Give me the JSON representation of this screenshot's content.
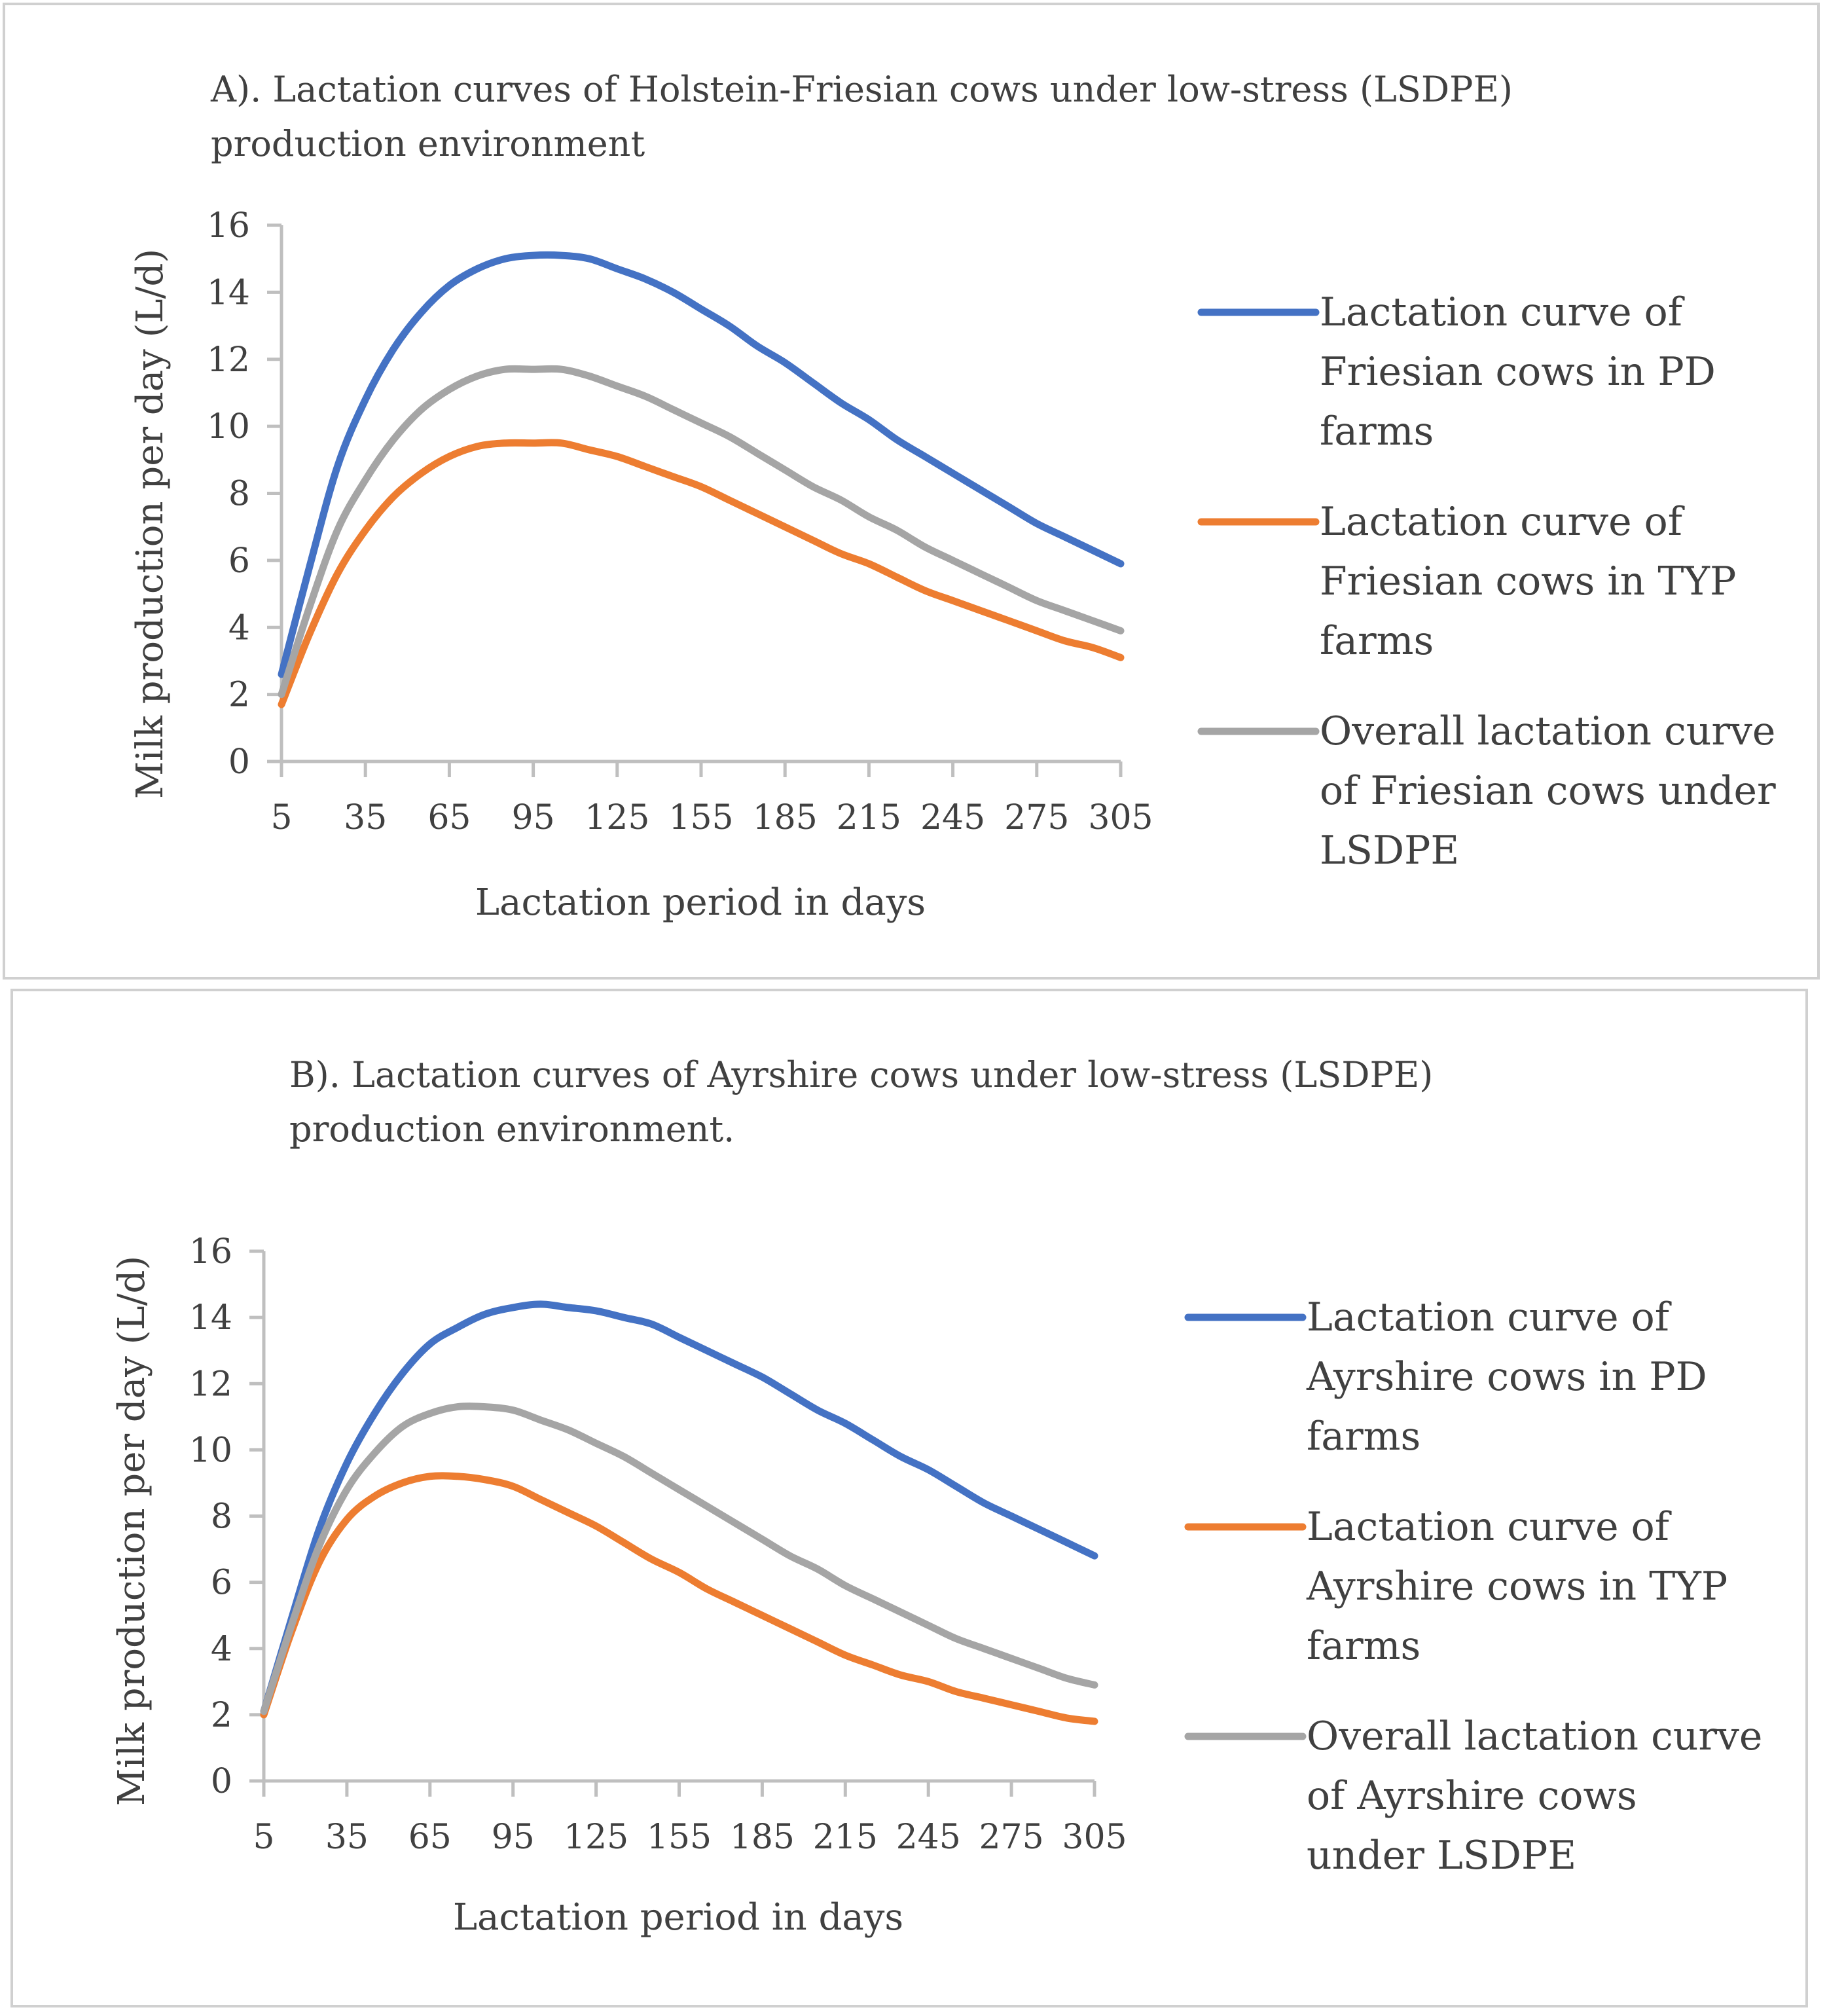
{
  "chart_data": [
    {
      "type": "line",
      "title": [
        "A). Lactation curves of Holstein-Friesian cows under low-stress (LSDPE)",
        "production environment"
      ],
      "xlabel": "Lactation period in days",
      "ylabel": "Milk production per day (L/d)",
      "xlim": [
        5,
        305
      ],
      "ylim": [
        0,
        16
      ],
      "x_ticks": [
        5,
        35,
        65,
        95,
        125,
        155,
        185,
        215,
        245,
        275,
        305
      ],
      "y_ticks": [
        0,
        2,
        4,
        6,
        8,
        10,
        12,
        14,
        16
      ],
      "grid": false,
      "legend_position": "right",
      "x": [
        5,
        15,
        25,
        35,
        45,
        55,
        65,
        75,
        85,
        95,
        105,
        115,
        125,
        135,
        145,
        155,
        165,
        175,
        185,
        195,
        205,
        215,
        225,
        235,
        245,
        255,
        265,
        275,
        285,
        295,
        305
      ],
      "series": [
        {
          "name": [
            "Lactation curve of",
            "Friesian cows in PD",
            "farms"
          ],
          "color": "#4472c4",
          "values": [
            2.6,
            5.8,
            8.8,
            10.8,
            12.3,
            13.4,
            14.2,
            14.7,
            15.0,
            15.1,
            15.1,
            15.0,
            14.7,
            14.4,
            14.0,
            13.5,
            13.0,
            12.4,
            11.9,
            11.3,
            10.7,
            10.2,
            9.6,
            9.1,
            8.6,
            8.1,
            7.6,
            7.1,
            6.7,
            6.3,
            5.9
          ]
        },
        {
          "name": [
            "Lactation curve of",
            "Friesian cows in TYP",
            "farms"
          ],
          "color": "#ed7d31",
          "values": [
            1.7,
            3.8,
            5.6,
            6.9,
            7.9,
            8.6,
            9.1,
            9.4,
            9.5,
            9.5,
            9.5,
            9.3,
            9.1,
            8.8,
            8.5,
            8.2,
            7.8,
            7.4,
            7.0,
            6.6,
            6.2,
            5.9,
            5.5,
            5.1,
            4.8,
            4.5,
            4.2,
            3.9,
            3.6,
            3.4,
            3.1
          ]
        },
        {
          "name": [
            "Overall lactation curve",
            "of Friesian cows under",
            "LSDPE"
          ],
          "color": "#a5a5a5",
          "values": [
            2.0,
            4.6,
            6.9,
            8.4,
            9.6,
            10.5,
            11.1,
            11.5,
            11.7,
            11.7,
            11.7,
            11.5,
            11.2,
            10.9,
            10.5,
            10.1,
            9.7,
            9.2,
            8.7,
            8.2,
            7.8,
            7.3,
            6.9,
            6.4,
            6.0,
            5.6,
            5.2,
            4.8,
            4.5,
            4.2,
            3.9
          ]
        }
      ]
    },
    {
      "type": "line",
      "title": [
        "B). Lactation curves of Ayrshire cows under low-stress (LSDPE)",
        "production environment."
      ],
      "xlabel": "Lactation period in days",
      "ylabel": "Milk production per day (L/d)",
      "xlim": [
        5,
        305
      ],
      "ylim": [
        0,
        16
      ],
      "x_ticks": [
        5,
        35,
        65,
        95,
        125,
        155,
        185,
        215,
        245,
        275,
        305
      ],
      "y_ticks": [
        0,
        2,
        4,
        6,
        8,
        10,
        12,
        14,
        16
      ],
      "grid": false,
      "legend_position": "right",
      "x": [
        5,
        15,
        25,
        35,
        45,
        55,
        65,
        75,
        85,
        95,
        105,
        115,
        125,
        135,
        145,
        155,
        165,
        175,
        185,
        195,
        205,
        215,
        225,
        235,
        245,
        255,
        265,
        275,
        285,
        295,
        305
      ],
      "series": [
        {
          "name": [
            "Lactation curve of",
            "Ayrshire cows in PD",
            "farms"
          ],
          "color": "#4472c4",
          "values": [
            2.1,
            4.9,
            7.6,
            9.6,
            11.1,
            12.3,
            13.2,
            13.7,
            14.1,
            14.3,
            14.4,
            14.3,
            14.2,
            14.0,
            13.8,
            13.4,
            13.0,
            12.6,
            12.2,
            11.7,
            11.2,
            10.8,
            10.3,
            9.8,
            9.4,
            8.9,
            8.4,
            8.0,
            7.6,
            7.2,
            6.8
          ]
        },
        {
          "name": [
            "Lactation curve of",
            "Ayrshire cows in TYP",
            "farms"
          ],
          "color": "#ed7d31",
          "values": [
            2.0,
            4.5,
            6.6,
            7.9,
            8.6,
            9.0,
            9.2,
            9.2,
            9.1,
            8.9,
            8.5,
            8.1,
            7.7,
            7.2,
            6.7,
            6.3,
            5.8,
            5.4,
            5.0,
            4.6,
            4.2,
            3.8,
            3.5,
            3.2,
            3.0,
            2.7,
            2.5,
            2.3,
            2.1,
            1.9,
            1.8
          ]
        },
        {
          "name": [
            "Overall lactation curve",
            "of Ayrshire cows",
            "under LSDPE"
          ],
          "color": "#a5a5a5",
          "values": [
            2.1,
            4.7,
            7.1,
            8.8,
            9.9,
            10.7,
            11.1,
            11.3,
            11.3,
            11.2,
            10.9,
            10.6,
            10.2,
            9.8,
            9.3,
            8.8,
            8.3,
            7.8,
            7.3,
            6.8,
            6.4,
            5.9,
            5.5,
            5.1,
            4.7,
            4.3,
            4.0,
            3.7,
            3.4,
            3.1,
            2.9
          ]
        }
      ]
    }
  ]
}
